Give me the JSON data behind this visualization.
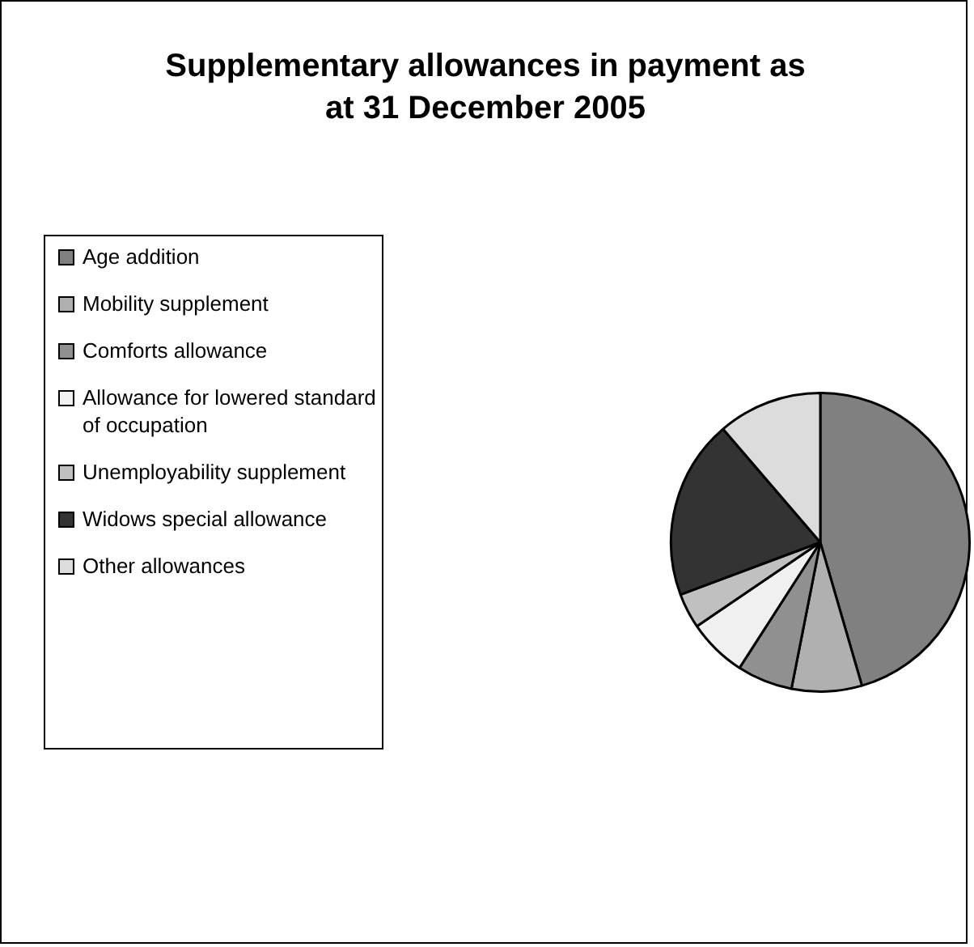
{
  "chart_data": {
    "type": "pie",
    "title": "Supplementary allowances in payment as at 31 December 2005",
    "legend": "left",
    "categories": [
      "Age addition",
      "Mobility supplement",
      "Comforts allowance",
      "Allowance for lowered standard of occupation",
      "Unemployability supplement",
      "Widows special allowance",
      "Other allowances"
    ],
    "values": [
      45.5,
      7.6,
      6,
      6.4,
      3.8,
      19.4,
      11.3
    ],
    "colors": [
      "#808080",
      "#b0b0b0",
      "#909090",
      "#f0f0f0",
      "#c0c0c0",
      "#333333",
      "#dcdcdc"
    ]
  }
}
